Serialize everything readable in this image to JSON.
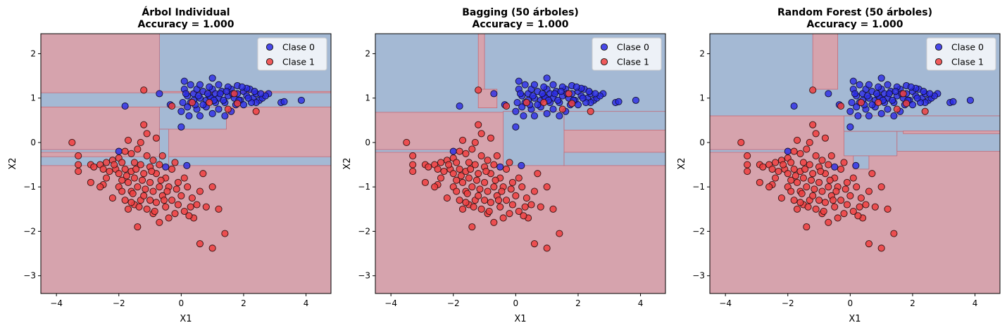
{
  "colors": {
    "class0_region": "#a4b9d4",
    "class1_region": "#d6a3ad",
    "class0_point": "#2a2ae6",
    "class1_point": "#f04040",
    "boundary": "#c46a78"
  },
  "legend_labels": [
    "Clase 0",
    "Clase 1"
  ],
  "chart_data": [
    {
      "type": "scatter",
      "title": "Árbol Individual",
      "subtitle": "Accuracy = 1.000",
      "xlabel": "X1",
      "ylabel": "X2",
      "xlim": [
        -4.5,
        4.8
      ],
      "ylim": [
        -3.4,
        2.45
      ],
      "xticks": [
        "−4",
        "−2",
        "0",
        "2",
        "4"
      ],
      "yticks": [
        "−3",
        "−2",
        "−1",
        "0",
        "1",
        "2"
      ],
      "legend": "top-right",
      "class0_regions": [
        [
          -0.7,
          4.8,
          1.15,
          2.45
        ],
        [
          -4.5,
          4.8,
          0.8,
          1.12
        ],
        [
          -0.7,
          1.45,
          0.3,
          0.8
        ],
        [
          -4.5,
          4.8,
          -0.52,
          -0.32
        ],
        [
          -4.5,
          -1.9,
          -0.22,
          -0.16
        ],
        [
          -0.7,
          -0.4,
          -0.52,
          0.3
        ]
      ]
    },
    {
      "type": "scatter",
      "title": "Bagging (50 árboles)",
      "subtitle": "Accuracy = 1.000",
      "xlabel": "X1",
      "ylabel": "X2",
      "xlim": [
        -4.5,
        4.8
      ],
      "ylim": [
        -3.4,
        2.45
      ],
      "xticks": [
        "−4",
        "−2",
        "0",
        "2",
        "4"
      ],
      "yticks": [
        "−3",
        "−2",
        "−1",
        "0",
        "1",
        "2"
      ],
      "legend": "top-right",
      "class0_regions": [
        [
          -4.5,
          4.8,
          0.68,
          2.45
        ],
        [
          -0.4,
          1.55,
          -0.52,
          0.7
        ],
        [
          1.55,
          4.8,
          0.28,
          0.7
        ],
        [
          1.55,
          4.8,
          -0.52,
          -0.22
        ],
        [
          -4.5,
          -1.9,
          -0.22,
          -0.16
        ]
      ],
      "class1_regions": [
        [
          -1.2,
          -1.0,
          1.12,
          2.45
        ],
        [
          -1.2,
          -0.6,
          0.78,
          1.2
        ]
      ]
    },
    {
      "type": "scatter",
      "title": "Random Forest (50 árboles)",
      "subtitle": "Accuracy = 1.000",
      "xlabel": "X1",
      "ylabel": "X2",
      "xlim": [
        -4.5,
        4.8
      ],
      "ylim": [
        -3.4,
        2.45
      ],
      "xticks": [
        "−4",
        "−2",
        "0",
        "2",
        "4"
      ],
      "yticks": [
        "−3",
        "−2",
        "−1",
        "0",
        "1",
        "2"
      ],
      "legend": "top-right",
      "class0_regions": [
        [
          -4.5,
          4.8,
          0.6,
          2.45
        ],
        [
          -0.2,
          4.8,
          0.25,
          0.6
        ],
        [
          -0.2,
          1.5,
          -0.3,
          0.25
        ],
        [
          1.5,
          4.8,
          -0.2,
          0.25
        ],
        [
          0.1,
          0.6,
          -0.6,
          -0.3
        ],
        [
          -4.5,
          -1.9,
          -0.22,
          -0.16
        ]
      ],
      "class1_regions": [
        [
          -1.2,
          -0.4,
          1.2,
          2.45
        ],
        [
          1.7,
          4.8,
          0.2,
          0.26
        ]
      ]
    }
  ],
  "points": {
    "class0": [
      [
        0.1,
        1.38
      ],
      [
        0.1,
        1.2
      ],
      [
        0.2,
        1.05
      ],
      [
        0.3,
        0.9
      ],
      [
        0.4,
        1.1
      ],
      [
        0.5,
        1.2
      ],
      [
        0.6,
        1.0
      ],
      [
        0.7,
        1.15
      ],
      [
        0.8,
        0.95
      ],
      [
        0.9,
        1.05
      ],
      [
        1.0,
        1.2
      ],
      [
        1.1,
        1.1
      ],
      [
        1.2,
        1.0
      ],
      [
        1.3,
        1.15
      ],
      [
        1.4,
        0.9
      ],
      [
        1.5,
        1.05
      ],
      [
        1.6,
        1.2
      ],
      [
        1.7,
        1.0
      ],
      [
        1.8,
        1.1
      ],
      [
        1.9,
        0.95
      ],
      [
        2.0,
        1.15
      ],
      [
        2.1,
        1.05
      ],
      [
        2.2,
        1.2
      ],
      [
        2.3,
        1.0
      ],
      [
        2.4,
        1.1
      ],
      [
        2.5,
        0.95
      ],
      [
        2.6,
        1.0
      ],
      [
        2.8,
        1.1
      ],
      [
        3.2,
        0.9
      ],
      [
        3.3,
        0.92
      ],
      [
        3.85,
        0.95
      ],
      [
        1.0,
        1.45
      ],
      [
        -0.7,
        1.1
      ],
      [
        -1.8,
        0.82
      ],
      [
        0.0,
        0.7
      ],
      [
        0.2,
        0.8
      ],
      [
        0.5,
        0.75
      ],
      [
        0.8,
        0.8
      ],
      [
        1.2,
        0.75
      ],
      [
        1.6,
        0.7
      ],
      [
        2.0,
        0.85
      ],
      [
        2.4,
        0.9
      ],
      [
        0.3,
        1.3
      ],
      [
        0.6,
        1.3
      ],
      [
        0.9,
        1.25
      ],
      [
        1.2,
        1.3
      ],
      [
        1.5,
        1.25
      ],
      [
        1.8,
        1.28
      ],
      [
        2.1,
        1.22
      ],
      [
        0.05,
        0.9
      ],
      [
        0.4,
        0.95
      ],
      [
        0.7,
        0.85
      ],
      [
        1.1,
        0.9
      ],
      [
        1.35,
        0.95
      ],
      [
        1.75,
        0.85
      ],
      [
        2.25,
        0.9
      ],
      [
        2.7,
        1.05
      ],
      [
        0.15,
        1.1
      ],
      [
        0.55,
        1.05
      ],
      [
        0.95,
        1.0
      ],
      [
        1.45,
        1.15
      ],
      [
        1.95,
        1.25
      ],
      [
        2.35,
        1.15
      ],
      [
        0.0,
        0.35
      ],
      [
        -0.5,
        -0.55
      ],
      [
        -2.0,
        -0.2
      ],
      [
        0.18,
        -0.52
      ],
      [
        0.25,
        0.6
      ],
      [
        0.6,
        0.6
      ],
      [
        1.0,
        0.65
      ],
      [
        1.4,
        0.6
      ],
      [
        -0.35,
        0.85
      ],
      [
        2.15,
        1.0
      ],
      [
        2.55,
        1.1
      ],
      [
        0.85,
        1.1
      ],
      [
        1.25,
        1.1
      ],
      [
        1.65,
        1.1
      ],
      [
        0.45,
        0.85
      ],
      [
        1.05,
        0.95
      ],
      [
        1.85,
        0.95
      ]
    ],
    "class1": [
      [
        -3.5,
        0.0
      ],
      [
        -3.3,
        -0.3
      ],
      [
        -3.3,
        -0.5
      ],
      [
        -3.3,
        -0.65
      ],
      [
        -2.9,
        -0.5
      ],
      [
        -2.8,
        -0.55
      ],
      [
        -2.9,
        -0.9
      ],
      [
        -2.6,
        -0.5
      ],
      [
        -2.5,
        -0.95
      ],
      [
        -2.4,
        -0.45
      ],
      [
        -2.4,
        -0.8
      ],
      [
        -2.3,
        -0.65
      ],
      [
        -2.2,
        -0.4
      ],
      [
        -2.2,
        -1.25
      ],
      [
        -2.1,
        -0.6
      ],
      [
        -2.0,
        -0.35
      ],
      [
        -2.0,
        -0.7
      ],
      [
        -2.0,
        -1.0
      ],
      [
        -1.9,
        -0.45
      ],
      [
        -1.9,
        -0.85
      ],
      [
        -1.8,
        -0.2
      ],
      [
        -1.8,
        -0.6
      ],
      [
        -1.8,
        -1.3
      ],
      [
        -1.7,
        0.05
      ],
      [
        -1.7,
        -0.9
      ],
      [
        -1.7,
        -1.5
      ],
      [
        -1.6,
        -0.25
      ],
      [
        -1.6,
        -0.65
      ],
      [
        -1.6,
        -1.1
      ],
      [
        -1.5,
        -0.45
      ],
      [
        -1.5,
        -0.8
      ],
      [
        -1.5,
        -1.4
      ],
      [
        -1.4,
        -1.9
      ],
      [
        -1.4,
        -1.0
      ],
      [
        -1.3,
        0.0
      ],
      [
        -1.3,
        -0.5
      ],
      [
        -1.3,
        -1.3
      ],
      [
        -1.2,
        0.4
      ],
      [
        -1.2,
        -0.7
      ],
      [
        -1.2,
        -1.2
      ],
      [
        -1.1,
        0.2
      ],
      [
        -1.1,
        -0.3
      ],
      [
        -1.1,
        -1.5
      ],
      [
        -1.0,
        -0.9
      ],
      [
        -1.0,
        -1.3
      ],
      [
        -0.9,
        -0.4
      ],
      [
        -0.9,
        -1.1
      ],
      [
        -0.9,
        -1.6
      ],
      [
        -0.8,
        0.1
      ],
      [
        -0.8,
        -0.7
      ],
      [
        -0.8,
        -1.35
      ],
      [
        -0.7,
        -0.5
      ],
      [
        -0.7,
        -1.0
      ],
      [
        -0.7,
        -1.8
      ],
      [
        -0.6,
        -0.3
      ],
      [
        -0.6,
        -1.2
      ],
      [
        -0.5,
        -0.8
      ],
      [
        -0.5,
        -1.45
      ],
      [
        -0.4,
        -1.0
      ],
      [
        -0.4,
        -1.7
      ],
      [
        -0.3,
        -0.6
      ],
      [
        -0.3,
        -1.3
      ],
      [
        -0.2,
        -1.6
      ],
      [
        -0.1,
        -0.9
      ],
      [
        -0.1,
        -1.4
      ],
      [
        0.0,
        -1.2
      ],
      [
        0.1,
        -1.55
      ],
      [
        0.2,
        -1.0
      ],
      [
        0.3,
        -1.45
      ],
      [
        0.4,
        -1.7
      ],
      [
        0.6,
        -1.1
      ],
      [
        0.7,
        -0.7
      ],
      [
        0.8,
        -1.45
      ],
      [
        1.0,
        -1.0
      ],
      [
        1.2,
        -1.5
      ],
      [
        1.4,
        -2.05
      ],
      [
        0.6,
        -2.28
      ],
      [
        1.0,
        -2.38
      ],
      [
        -1.2,
        1.18
      ],
      [
        -0.3,
        0.82
      ],
      [
        0.35,
        0.9
      ],
      [
        0.9,
        0.9
      ],
      [
        1.5,
        0.75
      ],
      [
        1.8,
        0.88
      ],
      [
        2.4,
        0.7
      ],
      [
        1.7,
        1.1
      ],
      [
        -2.6,
        -1.0
      ],
      [
        -1.9,
        -1.1
      ],
      [
        -1.6,
        -1.35
      ],
      [
        -1.0,
        -0.55
      ],
      [
        -0.2,
        -0.45
      ],
      [
        0.35,
        -1.25
      ],
      [
        -1.4,
        -0.15
      ],
      [
        -2.5,
        -0.6
      ],
      [
        -0.65,
        -0.85
      ],
      [
        -1.15,
        -1.05
      ],
      [
        -0.45,
        -1.1
      ],
      [
        0.1,
        -0.8
      ],
      [
        -1.75,
        -0.75
      ],
      [
        -0.85,
        -1.55
      ],
      [
        -1.45,
        -0.6
      ],
      [
        -0.15,
        -1.05
      ],
      [
        -2.15,
        -0.5
      ],
      [
        -1.25,
        -0.85
      ],
      [
        0.5,
        -1.4
      ],
      [
        -0.95,
        -0.65
      ],
      [
        -1.55,
        -1.15
      ],
      [
        -0.55,
        -1.3
      ],
      [
        0.25,
        -1.65
      ],
      [
        -1.35,
        -1.45
      ]
    ]
  }
}
